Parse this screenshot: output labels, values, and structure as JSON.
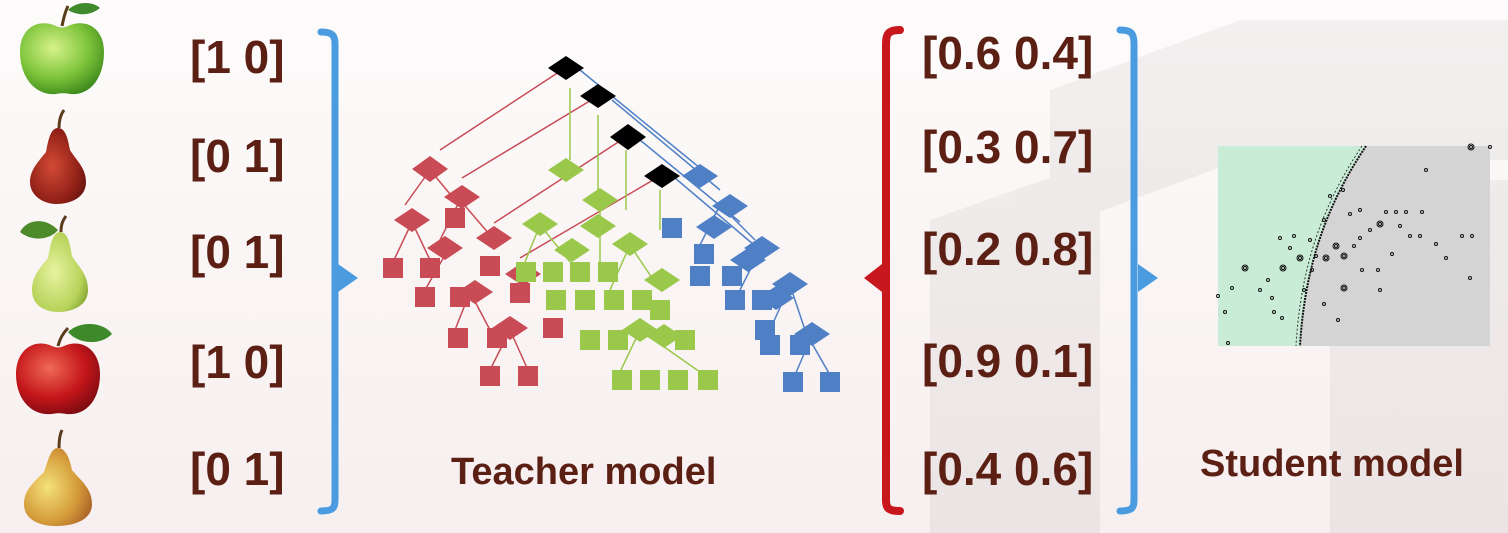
{
  "hard_labels": [
    "[1 0]",
    "[0 1]",
    "[0 1]",
    "[1 0]",
    "[0 1]"
  ],
  "soft_labels": [
    "[0.6 0.4]",
    "[0.3 0.7]",
    "[0.2 0.8]",
    "[0.9 0.1]",
    "[0.4 0.6]"
  ],
  "teacher": {
    "title": "Teacher model"
  },
  "student": {
    "title": "Student model"
  },
  "fruits": [
    "green-apple",
    "red-pear",
    "green-pear",
    "red-apple",
    "yellow-pear"
  ],
  "colors": {
    "label_text": "#5c1f14",
    "blue_bracket": "#4a9be0",
    "red_bracket": "#c8161d",
    "tree_red": "#c84b55",
    "tree_green": "#9ac84a",
    "tree_blue": "#4f80c6",
    "tree_black": "#000000",
    "student_green_region": "#c8ecd6",
    "student_gray_region": "#d4d4d4"
  }
}
